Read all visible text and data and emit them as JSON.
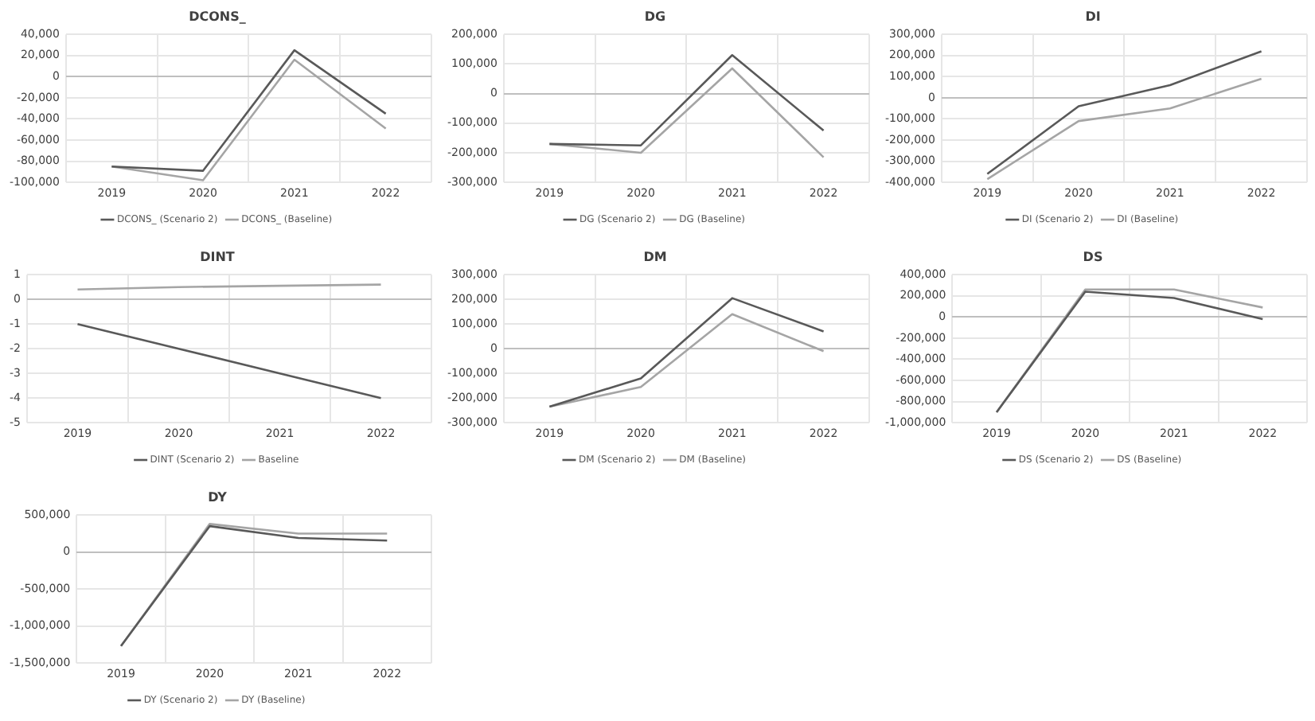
{
  "chart_data": [
    {
      "type": "line",
      "title": "DCONS_",
      "categories": [
        "2019",
        "2020",
        "2021",
        "2022"
      ],
      "series": [
        {
          "name": "DCONS_ (Scenario 2)",
          "color": "#595959",
          "values": [
            -85000,
            -89000,
            25000,
            -35000
          ]
        },
        {
          "name": "DCONS_ (Baseline)",
          "color": "#a5a5a5",
          "values": [
            -85000,
            -98000,
            16000,
            -49000
          ]
        }
      ],
      "ylim": [
        -100000,
        40000
      ],
      "yticks": [
        {
          "value": -100000,
          "label": "-100,000"
        },
        {
          "value": -80000,
          "label": "-80,000"
        },
        {
          "value": -60000,
          "label": "-60,000"
        },
        {
          "value": -40000,
          "label": "-40,000"
        },
        {
          "value": -20000,
          "label": "-20,000"
        },
        0,
        {
          "value": 20000,
          "label": "20,000"
        },
        {
          "value": 40000,
          "label": "40,000"
        }
      ],
      "grid": true,
      "legend": "bottom",
      "marker": "none"
    },
    {
      "type": "line",
      "title": "DG",
      "categories": [
        "2019",
        "2020",
        "2021",
        "2022"
      ],
      "series": [
        {
          "name": "DG (Scenario 2)",
          "color": "#595959",
          "values": [
            -170000,
            -175000,
            130000,
            -125000
          ]
        },
        {
          "name": "DG (Baseline)",
          "color": "#a5a5a5",
          "values": [
            -170000,
            -200000,
            85000,
            -215000
          ]
        }
      ],
      "ylim": [
        -300000,
        200000
      ],
      "yticks": [
        {
          "value": -300000,
          "label": "-300,000"
        },
        {
          "value": -200000,
          "label": "-200,000"
        },
        {
          "value": -100000,
          "label": "-100,000"
        },
        0,
        {
          "value": 100000,
          "label": "100,000"
        },
        {
          "value": 200000,
          "label": "200,000"
        }
      ],
      "grid": true,
      "legend": "bottom",
      "marker": "none"
    },
    {
      "type": "line",
      "title": "DI",
      "categories": [
        "2019",
        "2020",
        "2021",
        "2022"
      ],
      "series": [
        {
          "name": "DI (Scenario 2)",
          "color": "#595959",
          "values": [
            -360000,
            -40000,
            60000,
            220000
          ]
        },
        {
          "name": "DI (Baseline)",
          "color": "#a5a5a5",
          "values": [
            -385000,
            -110000,
            -50000,
            90000
          ]
        }
      ],
      "ylim": [
        -400000,
        300000
      ],
      "yticks": [
        {
          "value": -400000,
          "label": "-400,000"
        },
        {
          "value": -300000,
          "label": "-300,000"
        },
        {
          "value": -200000,
          "label": "-200,000"
        },
        {
          "value": -100000,
          "label": "-100,000"
        },
        0,
        {
          "value": 100000,
          "label": "100,000"
        },
        {
          "value": 200000,
          "label": "200,000"
        },
        {
          "value": 300000,
          "label": "300,000"
        }
      ],
      "grid": true,
      "legend": "bottom",
      "marker": "none"
    },
    {
      "type": "line",
      "title": "DINT",
      "categories": [
        "2019",
        "2020",
        "2021",
        "2022"
      ],
      "series": [
        {
          "name": "DINT (Scenario 2)",
          "color": "#595959",
          "values": [
            -1,
            -2,
            -3,
            -4
          ]
        },
        {
          "name": "Baseline",
          "color": "#a5a5a5",
          "values": [
            0.4,
            0.5,
            0.55,
            0.6
          ]
        }
      ],
      "ylim": [
        -5,
        1
      ],
      "yticks": [
        -5,
        -4,
        -3,
        -2,
        -1,
        0,
        1
      ],
      "grid": true,
      "legend": "bottom",
      "marker": "none"
    },
    {
      "type": "line",
      "title": "DM",
      "categories": [
        "2019",
        "2020",
        "2021",
        "2022"
      ],
      "series": [
        {
          "name": "DM (Scenario 2)",
          "color": "#595959",
          "values": [
            -235000,
            -120000,
            205000,
            70000
          ]
        },
        {
          "name": "DM (Baseline)",
          "color": "#a5a5a5",
          "values": [
            -235000,
            -155000,
            140000,
            -10000
          ]
        }
      ],
      "ylim": [
        -300000,
        300000
      ],
      "yticks": [
        {
          "value": -300000,
          "label": "-300,000"
        },
        {
          "value": -200000,
          "label": "-200,000"
        },
        {
          "value": -100000,
          "label": "-100,000"
        },
        0,
        {
          "value": 100000,
          "label": "100,000"
        },
        {
          "value": 200000,
          "label": "200,000"
        },
        {
          "value": 300000,
          "label": "300,000"
        }
      ],
      "grid": true,
      "legend": "bottom",
      "marker": "none"
    },
    {
      "type": "line",
      "title": "DS",
      "categories": [
        "2019",
        "2020",
        "2021",
        "2022"
      ],
      "series": [
        {
          "name": "DS (Scenario 2)",
          "color": "#595959",
          "values": [
            -900000,
            240000,
            180000,
            -20000
          ]
        },
        {
          "name": "DS (Baseline)",
          "color": "#a5a5a5",
          "values": [
            -900000,
            260000,
            260000,
            90000
          ]
        }
      ],
      "ylim": [
        -1000000,
        400000
      ],
      "yticks": [
        {
          "value": -1000000,
          "label": "-1,000,000"
        },
        {
          "value": -800000,
          "label": "-800,000"
        },
        {
          "value": -600000,
          "label": "-600,000"
        },
        {
          "value": -400000,
          "label": "-400,000"
        },
        {
          "value": -200000,
          "label": "-200,000"
        },
        0,
        {
          "value": 200000,
          "label": "200,000"
        },
        {
          "value": 400000,
          "label": "400,000"
        }
      ],
      "grid": true,
      "legend": "bottom",
      "marker": "none"
    },
    {
      "type": "line",
      "title": "DY",
      "categories": [
        "2019",
        "2020",
        "2021",
        "2022"
      ],
      "series": [
        {
          "name": "DY (Scenario 2)",
          "color": "#595959",
          "values": [
            -1270000,
            350000,
            190000,
            155000
          ]
        },
        {
          "name": "DY (Baseline)",
          "color": "#a5a5a5",
          "values": [
            -1270000,
            380000,
            250000,
            250000
          ]
        }
      ],
      "ylim": [
        -1500000,
        500000
      ],
      "yticks": [
        {
          "value": -1500000,
          "label": "-1,500,000"
        },
        {
          "value": -1000000,
          "label": "-1,000,000"
        },
        {
          "value": -500000,
          "label": "-500,000"
        },
        0,
        {
          "value": 500000,
          "label": "500,000"
        }
      ],
      "grid": true,
      "legend": "bottom",
      "marker": "none"
    }
  ]
}
